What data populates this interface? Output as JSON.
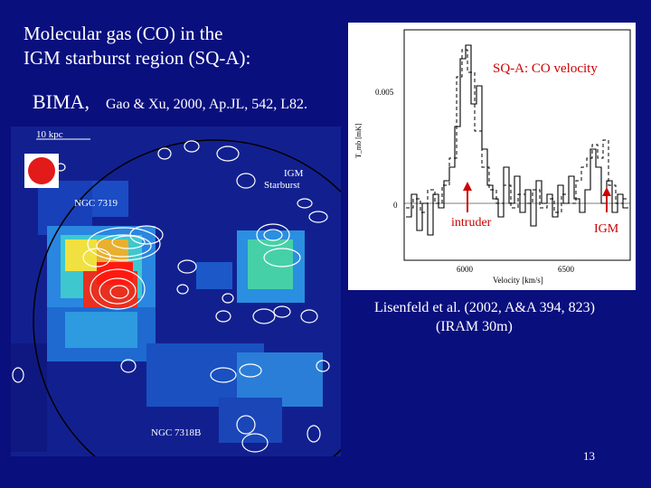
{
  "slide": {
    "title_line1": "Molecular gas (CO) in the",
    "title_line2": "IGM starburst region (SQ-A):",
    "instrument": "BIMA,",
    "citation": "Gao & Xu, 2000, Ap.JL, 542, L82.",
    "reference_line1": "Lisenfeld et al. (2002, A&A 394, 823)",
    "reference_line2": "(IRAM 30m)",
    "page_number": "13"
  },
  "map": {
    "scale_label": "10 kpc",
    "labels": {
      "ngc7319": "NGC 7319",
      "igm_line1": "IGM",
      "igm_line2": "Starburst",
      "ngc7318b": "NGC 7318B"
    }
  },
  "spectrum": {
    "title": "SQ-A: CO velocity",
    "ylabel": "T_mb [mK]",
    "xlabel": "Velocity [km/s]",
    "y_ticks": [
      "0.005",
      "0"
    ],
    "x_ticks": [
      "6000",
      "6500"
    ],
    "annotation_intruder": "intruder",
    "annotation_igm": "IGM",
    "arrow_color": "#cc0000",
    "label_color": "#cc0000"
  }
}
